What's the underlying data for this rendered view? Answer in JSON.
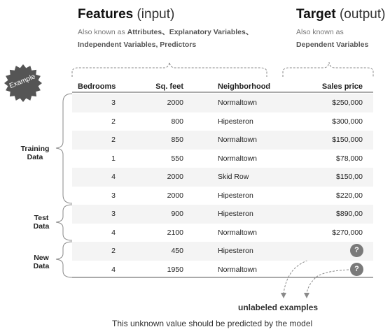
{
  "header": {
    "features": {
      "title": "Features",
      "paren": "(input)",
      "line1_prefix": "Also known as",
      "line1_bold": "Attributes、Explanatory Variables、",
      "line2_bold": "Independent Variables, Predictors"
    },
    "target": {
      "title": "Target",
      "paren": "(output)",
      "line1": "Also known as",
      "line2_bold": "Dependent Variables"
    }
  },
  "badge": {
    "label": "Example"
  },
  "table": {
    "columns": [
      "Bedrooms",
      "Sq. feet",
      "Neighborhood",
      "Sales price"
    ],
    "rows": [
      {
        "bedrooms": "3",
        "sqft": "2000",
        "neighborhood": "Normaltown",
        "price": "$250,000"
      },
      {
        "bedrooms": "2",
        "sqft": "800",
        "neighborhood": "Hipesteron",
        "price": "$300,000"
      },
      {
        "bedrooms": "2",
        "sqft": "850",
        "neighborhood": "Normaltown",
        "price": "$150,000"
      },
      {
        "bedrooms": "1",
        "sqft": "550",
        "neighborhood": "Normaltown",
        "price": "$78,000"
      },
      {
        "bedrooms": "4",
        "sqft": "2000",
        "neighborhood": "Skid Row",
        "price": "$150,00"
      },
      {
        "bedrooms": "3",
        "sqft": "2000",
        "neighborhood": "Hipesteron",
        "price": "$220,00"
      },
      {
        "bedrooms": "3",
        "sqft": "900",
        "neighborhood": "Hipesteron",
        "price": "$890,00"
      },
      {
        "bedrooms": "4",
        "sqft": "2100",
        "neighborhood": "Normaltown",
        "price": "$270,000"
      },
      {
        "bedrooms": "2",
        "sqft": "450",
        "neighborhood": "Hipesteron",
        "price": "?"
      },
      {
        "bedrooms": "4",
        "sqft": "1950",
        "neighborhood": "Normaltown",
        "price": "?"
      }
    ]
  },
  "groups": {
    "training": {
      "line1": "Training",
      "line2": "Data"
    },
    "test": {
      "line1": "Test",
      "line2": "Data"
    },
    "new": {
      "line1": "New",
      "line2": "Data"
    }
  },
  "footer": {
    "label": "unlabeled examples",
    "note": "This unknown value should be predicted by the model"
  },
  "colors": {
    "badge": "#555555",
    "unknown_badge": "#7a7a7a",
    "row_shade": "#f4f4f4",
    "lines": "#8a8a8a"
  }
}
